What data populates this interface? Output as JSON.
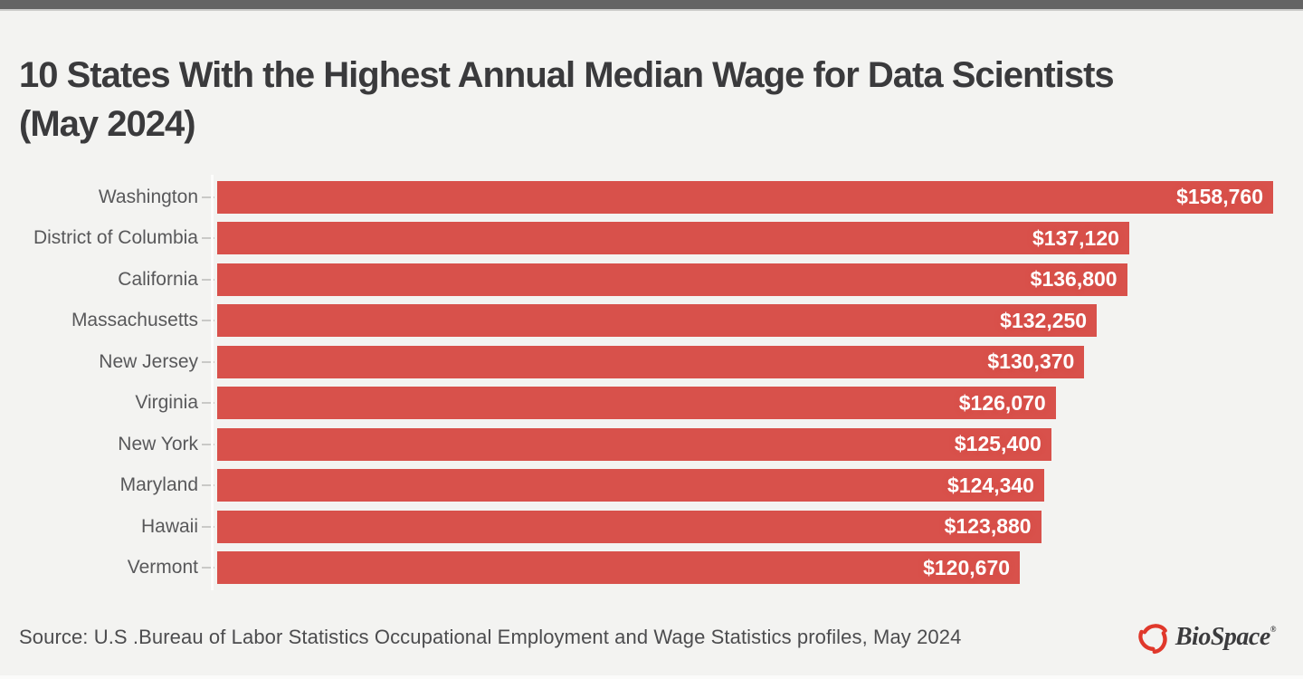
{
  "page": {
    "background_color": "#f3f3f1",
    "topbar_color": "#646464"
  },
  "header": {
    "title": "10 States With the Highest Annual Median Wage for Data Scientists (May 2024)",
    "title_lines": [
      "10 States With the Highest Annual Median Wage for Data Scientists",
      "(May 2024)"
    ]
  },
  "chart_data": {
    "type": "bar",
    "orientation": "horizontal",
    "title": "10 States With the Highest Annual Median Wage for Data Scientists (May 2024)",
    "categories": [
      "Washington",
      "District of Columbia",
      "California",
      "Massachusetts",
      "New Jersey",
      "Virginia",
      "New York",
      "Maryland",
      "Hawaii",
      "Vermont"
    ],
    "values": [
      158760,
      137120,
      136800,
      132250,
      130370,
      126070,
      125400,
      124340,
      123880,
      120670
    ],
    "value_labels": [
      "$158,760",
      "$137,120",
      "$136,800",
      "$132,250",
      "$130,370",
      "$126,070",
      "$125,400",
      "$124,340",
      "$123,880",
      "$120,670"
    ],
    "xlabel": "",
    "ylabel": "",
    "xlim": [
      0,
      158760
    ],
    "grid": false,
    "legend": "none",
    "bar_color": "#d8514b",
    "category_label_color": "#58585a",
    "value_label_color": "#ffffff"
  },
  "footer": {
    "source": "Source: U.S .Bureau of Labor Statistics Occupational Employment and Wage Statistics profiles, May 2024",
    "logo_text": "BioSpace",
    "logo_reg_mark": "®",
    "logo_mark_color": "#e0382b",
    "logo_text_color": "#3b3b3d"
  }
}
